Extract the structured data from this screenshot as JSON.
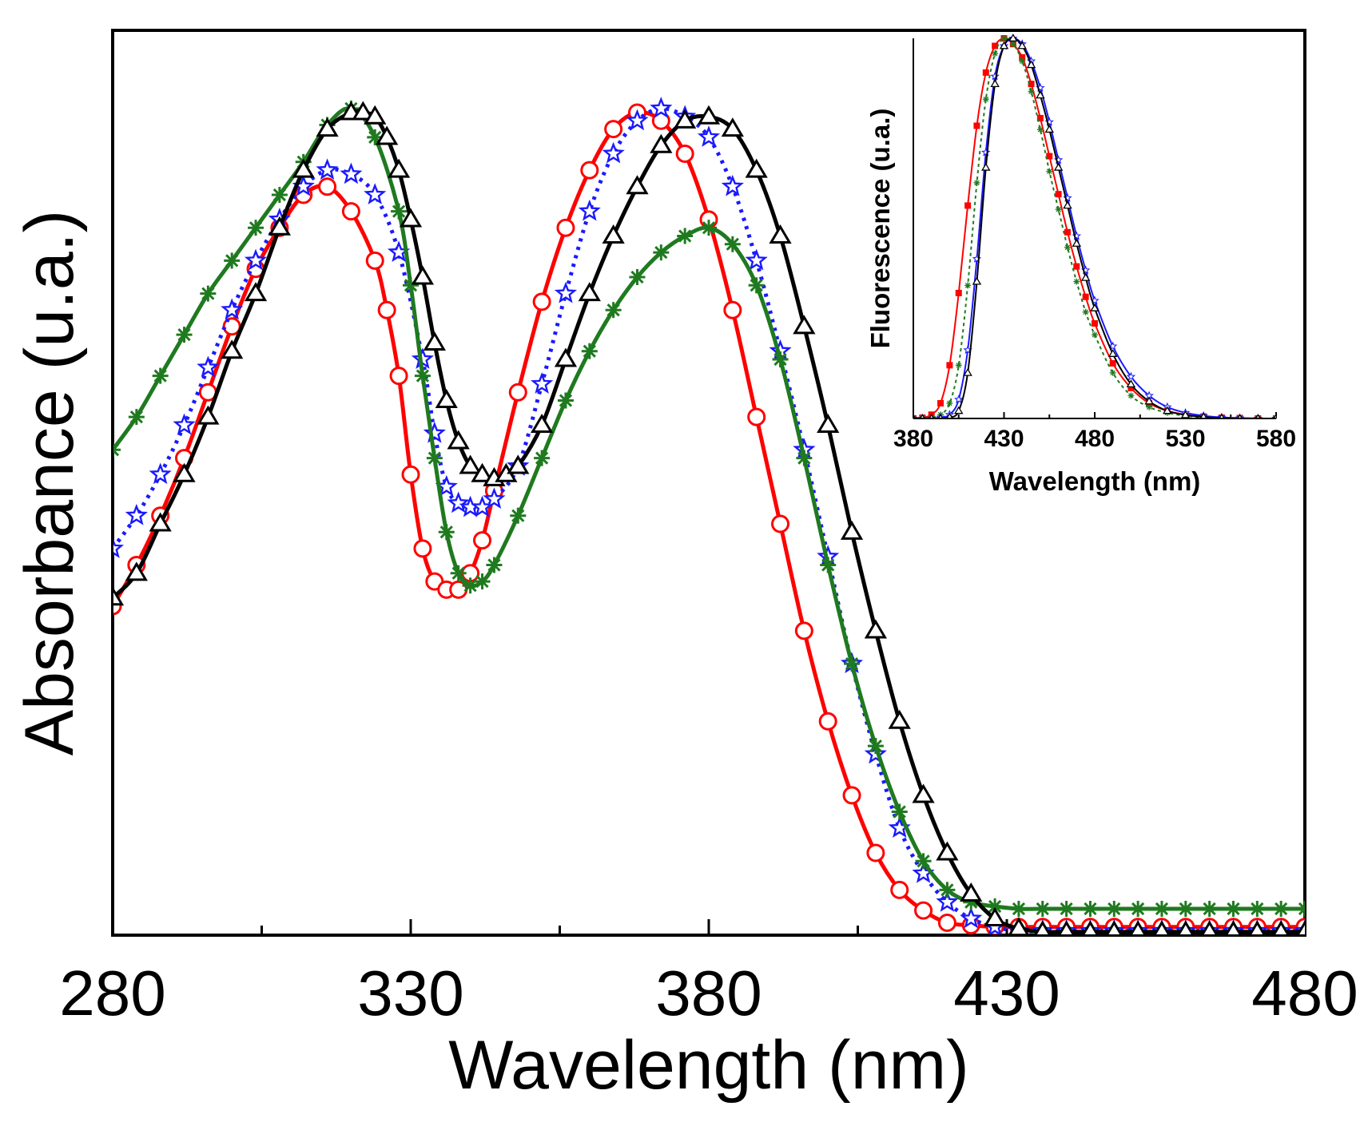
{
  "chart_data": [
    {
      "type": "line",
      "name": "main",
      "xlabel": "Wavelength (nm)",
      "ylabel": "Absorbance (u.a.)",
      "xlim": [
        280,
        480
      ],
      "ylim": [
        0,
        1.1
      ],
      "xticks": [
        280,
        330,
        380,
        430,
        480
      ],
      "show_y_ticks": false,
      "series": [
        {
          "name": "red-circles",
          "color": "#ff0000",
          "marker": "circle",
          "dash": "",
          "x": [
            280,
            284,
            288,
            292,
            296,
            300,
            304,
            308,
            312,
            316,
            320,
            324,
            326,
            328,
            330,
            332,
            334,
            336,
            338,
            340,
            342,
            344,
            348,
            352,
            356,
            360,
            364,
            368,
            372,
            376,
            380,
            384,
            388,
            392,
            396,
            400,
            404,
            408,
            412,
            416,
            420,
            424,
            428,
            432,
            436,
            440,
            444,
            448,
            452,
            456,
            460,
            464,
            468,
            472,
            476,
            480
          ],
          "y": [
            0.4,
            0.45,
            0.51,
            0.58,
            0.66,
            0.74,
            0.81,
            0.86,
            0.9,
            0.91,
            0.88,
            0.82,
            0.76,
            0.68,
            0.56,
            0.47,
            0.43,
            0.42,
            0.42,
            0.44,
            0.48,
            0.54,
            0.66,
            0.77,
            0.86,
            0.93,
            0.98,
            1.0,
            0.99,
            0.95,
            0.87,
            0.76,
            0.63,
            0.5,
            0.37,
            0.26,
            0.17,
            0.1,
            0.055,
            0.03,
            0.015,
            0.012,
            0.01,
            0.01,
            0.01,
            0.01,
            0.01,
            0.01,
            0.01,
            0.01,
            0.01,
            0.01,
            0.01,
            0.01,
            0.01,
            0.01
          ]
        },
        {
          "name": "blue-stars",
          "color": "#1a1aff",
          "marker": "star",
          "dash": "4 7",
          "x": [
            280,
            284,
            288,
            292,
            296,
            300,
            304,
            308,
            312,
            316,
            320,
            324,
            328,
            332,
            334,
            336,
            338,
            340,
            342,
            344,
            348,
            352,
            356,
            360,
            364,
            368,
            372,
            376,
            380,
            384,
            388,
            392,
            396,
            400,
            404,
            408,
            412,
            416,
            420,
            424,
            428,
            432,
            436,
            440,
            444,
            448,
            452,
            456,
            460,
            464,
            468,
            472,
            476,
            480
          ],
          "y": [
            0.47,
            0.51,
            0.56,
            0.62,
            0.69,
            0.76,
            0.82,
            0.87,
            0.91,
            0.93,
            0.925,
            0.9,
            0.83,
            0.7,
            0.61,
            0.545,
            0.525,
            0.52,
            0.52,
            0.53,
            0.57,
            0.67,
            0.78,
            0.88,
            0.95,
            0.99,
            1.005,
            0.995,
            0.97,
            0.91,
            0.82,
            0.71,
            0.59,
            0.46,
            0.33,
            0.22,
            0.13,
            0.075,
            0.04,
            0.02,
            0.01,
            0.005,
            0.005,
            0.005,
            0.005,
            0.005,
            0.005,
            0.005,
            0.005,
            0.005,
            0.005,
            0.005,
            0.005,
            0.005
          ]
        },
        {
          "name": "green-asterisks",
          "color": "#1f7a1f",
          "marker": "asterisk",
          "dash": "",
          "x": [
            280,
            284,
            288,
            292,
            296,
            300,
            304,
            308,
            312,
            316,
            320,
            324,
            328,
            330,
            332,
            334,
            336,
            338,
            340,
            342,
            344,
            348,
            352,
            356,
            360,
            364,
            368,
            372,
            376,
            380,
            384,
            388,
            392,
            396,
            400,
            404,
            408,
            412,
            416,
            420,
            424,
            428,
            432,
            436,
            440,
            444,
            448,
            452,
            456,
            460,
            464,
            468,
            472,
            476,
            480
          ],
          "y": [
            0.59,
            0.63,
            0.68,
            0.73,
            0.78,
            0.82,
            0.86,
            0.9,
            0.94,
            0.985,
            1.005,
            0.97,
            0.88,
            0.79,
            0.68,
            0.58,
            0.49,
            0.44,
            0.425,
            0.43,
            0.45,
            0.51,
            0.58,
            0.65,
            0.71,
            0.76,
            0.8,
            0.83,
            0.85,
            0.86,
            0.84,
            0.79,
            0.7,
            0.58,
            0.45,
            0.33,
            0.23,
            0.15,
            0.09,
            0.055,
            0.04,
            0.035,
            0.032,
            0.032,
            0.032,
            0.032,
            0.032,
            0.032,
            0.032,
            0.032,
            0.032,
            0.032,
            0.032,
            0.032,
            0.032
          ]
        },
        {
          "name": "black-triangles",
          "color": "#000000",
          "marker": "triangle",
          "dash": "",
          "x": [
            280,
            284,
            288,
            292,
            296,
            300,
            304,
            308,
            312,
            316,
            320,
            322,
            324,
            326,
            328,
            330,
            332,
            334,
            336,
            338,
            340,
            342,
            344,
            346,
            348,
            352,
            356,
            360,
            364,
            368,
            372,
            376,
            380,
            384,
            388,
            392,
            396,
            400,
            404,
            408,
            412,
            416,
            420,
            424,
            428,
            432,
            436,
            440,
            444,
            448,
            452,
            456,
            460,
            464,
            468,
            472,
            476,
            480
          ],
          "y": [
            0.41,
            0.44,
            0.5,
            0.56,
            0.63,
            0.71,
            0.78,
            0.86,
            0.93,
            0.98,
            1.0,
            1.0,
            0.995,
            0.97,
            0.93,
            0.87,
            0.8,
            0.72,
            0.65,
            0.6,
            0.57,
            0.56,
            0.555,
            0.56,
            0.57,
            0.62,
            0.7,
            0.78,
            0.85,
            0.91,
            0.96,
            0.99,
            0.995,
            0.98,
            0.93,
            0.85,
            0.74,
            0.62,
            0.49,
            0.37,
            0.26,
            0.17,
            0.1,
            0.05,
            0.02,
            0.008,
            0.004,
            0.004,
            0.004,
            0.004,
            0.004,
            0.004,
            0.004,
            0.004,
            0.004,
            0.004,
            0.004,
            0.004
          ]
        }
      ]
    },
    {
      "type": "line",
      "name": "inset",
      "xlabel": "Wavelength (nm)",
      "ylabel": "Fluorescence (u.a.)",
      "xlim": [
        380,
        580
      ],
      "ylim": [
        0,
        1.0
      ],
      "xticks": [
        380,
        430,
        480,
        530,
        580
      ],
      "show_y_ticks": false,
      "series": [
        {
          "name": "red",
          "color": "#ff0000",
          "marker": "square",
          "dash": "",
          "x": [
            380,
            385,
            390,
            395,
            400,
            405,
            410,
            415,
            420,
            425,
            430,
            435,
            440,
            445,
            450,
            455,
            460,
            465,
            470,
            475,
            480,
            490,
            500,
            510,
            520,
            530,
            540,
            550,
            560,
            570,
            580
          ],
          "y": [
            0.0,
            0.002,
            0.01,
            0.04,
            0.14,
            0.33,
            0.56,
            0.77,
            0.91,
            0.98,
            1.0,
            0.985,
            0.95,
            0.88,
            0.79,
            0.69,
            0.59,
            0.49,
            0.4,
            0.32,
            0.25,
            0.145,
            0.08,
            0.04,
            0.02,
            0.01,
            0.005,
            0.002,
            0.001,
            0.0,
            0.0
          ]
        },
        {
          "name": "green",
          "color": "#1f7a1f",
          "marker": "asterisk",
          "dash": "4 4",
          "x": [
            380,
            385,
            390,
            395,
            400,
            405,
            410,
            415,
            420,
            425,
            430,
            435,
            440,
            445,
            450,
            455,
            460,
            465,
            470,
            475,
            480,
            490,
            500,
            510,
            520,
            530,
            540,
            550,
            560,
            570,
            580
          ],
          "y": [
            0.0,
            0.0,
            0.003,
            0.01,
            0.04,
            0.14,
            0.35,
            0.62,
            0.84,
            0.96,
            1.0,
            0.985,
            0.94,
            0.86,
            0.76,
            0.65,
            0.55,
            0.45,
            0.36,
            0.28,
            0.22,
            0.12,
            0.06,
            0.03,
            0.015,
            0.007,
            0.003,
            0.001,
            0.0,
            0.0,
            0.0
          ]
        },
        {
          "name": "blue",
          "color": "#1a1aff",
          "marker": "star",
          "dash": "",
          "x": [
            380,
            385,
            390,
            395,
            400,
            405,
            410,
            415,
            420,
            425,
            430,
            435,
            440,
            445,
            450,
            455,
            460,
            465,
            470,
            475,
            480,
            490,
            500,
            510,
            520,
            530,
            540,
            550,
            560,
            570,
            580
          ],
          "y": [
            0.0,
            0.0,
            0.0,
            0.003,
            0.01,
            0.05,
            0.18,
            0.42,
            0.7,
            0.9,
            0.98,
            1.0,
            0.985,
            0.94,
            0.87,
            0.78,
            0.68,
            0.58,
            0.48,
            0.39,
            0.31,
            0.19,
            0.11,
            0.06,
            0.03,
            0.015,
            0.007,
            0.003,
            0.001,
            0.0,
            0.0
          ]
        },
        {
          "name": "black",
          "color": "#000000",
          "marker": "triangle",
          "dash": "",
          "x": [
            380,
            385,
            390,
            395,
            400,
            405,
            410,
            415,
            420,
            425,
            430,
            435,
            440,
            445,
            450,
            455,
            460,
            465,
            470,
            475,
            480,
            490,
            500,
            510,
            520,
            530,
            540,
            550,
            560,
            570,
            580
          ],
          "y": [
            0.0,
            0.0,
            0.0,
            0.0,
            0.003,
            0.02,
            0.12,
            0.36,
            0.66,
            0.88,
            0.98,
            1.0,
            0.98,
            0.93,
            0.85,
            0.76,
            0.66,
            0.56,
            0.46,
            0.37,
            0.29,
            0.17,
            0.09,
            0.045,
            0.02,
            0.009,
            0.004,
            0.001,
            0.0,
            0.0,
            0.0
          ]
        }
      ]
    }
  ]
}
